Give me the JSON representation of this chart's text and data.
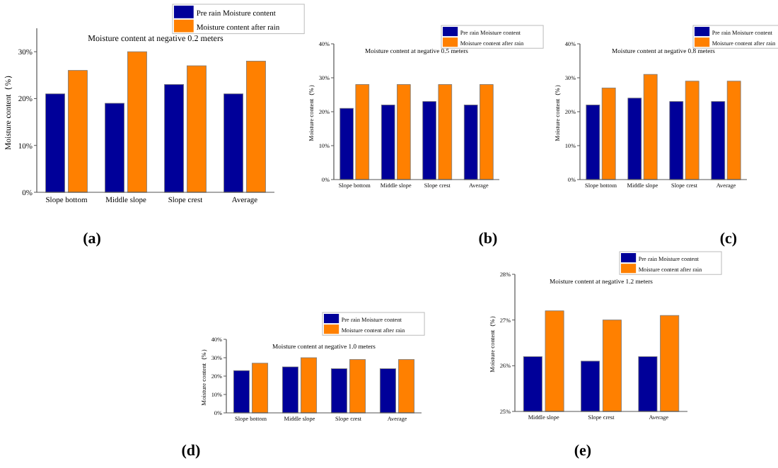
{
  "chart_data": [
    {
      "type": "bar",
      "title": "Moisture content at negative 0.2 meters",
      "ylabel": "Moisture content（%）",
      "categories": [
        "Slope bottom",
        "Middle slope",
        "Slope crest",
        "Average"
      ],
      "series": [
        {
          "name": "Pre rain Moisture content",
          "color": "#000099",
          "values": [
            21,
            19,
            23,
            21
          ]
        },
        {
          "name": "Moisture content after rain",
          "color": "#ff8000",
          "values": [
            26,
            30,
            27,
            28
          ]
        }
      ],
      "ylim": [
        0,
        35
      ],
      "yticks": [
        {
          "value": 0,
          "label": "0%"
        },
        {
          "value": 10,
          "label": "10%"
        },
        {
          "value": 20,
          "label": "20%"
        },
        {
          "value": 30,
          "label": "30%"
        }
      ],
      "legend": "top right",
      "annotations": [
        "(a)"
      ]
    },
    {
      "type": "bar",
      "title": "Moisture content at negative 0.5 meters",
      "ylabel": "Moisture content（%）",
      "categories": [
        "Slope bottom",
        "Middle slope",
        "Slope crest",
        "Average"
      ],
      "series": [
        {
          "name": "Pre rain Moisture content",
          "color": "#000099",
          "values": [
            21,
            22,
            23,
            22
          ]
        },
        {
          "name": "Moisture content after rain",
          "color": "#ff8000",
          "values": [
            28,
            28,
            28,
            28
          ]
        }
      ],
      "ylim": [
        0,
        40
      ],
      "yticks": [
        {
          "value": 0,
          "label": "0%"
        },
        {
          "value": 10,
          "label": "10%"
        },
        {
          "value": 20,
          "label": "20%"
        },
        {
          "value": 30,
          "label": "30%"
        },
        {
          "value": 40,
          "label": "40%"
        }
      ],
      "legend": "top right",
      "annotations": [
        "(b)"
      ]
    },
    {
      "type": "bar",
      "title": "Moisture content at negative 0.8 meters",
      "ylabel": "Moisture content（%）",
      "categories": [
        "Slope bottom",
        "Middle slope",
        "Slope crest",
        "Average"
      ],
      "series": [
        {
          "name": "Pre rain Moisture content",
          "color": "#000099",
          "values": [
            22,
            24,
            23,
            23
          ]
        },
        {
          "name": "Moisture content after rain",
          "color": "#ff8000",
          "values": [
            27,
            31,
            29,
            29
          ]
        }
      ],
      "ylim": [
        0,
        40
      ],
      "yticks": [
        {
          "value": 0,
          "label": "0%"
        },
        {
          "value": 10,
          "label": "10%"
        },
        {
          "value": 20,
          "label": "20%"
        },
        {
          "value": 30,
          "label": "30%"
        },
        {
          "value": 40,
          "label": "40%"
        }
      ],
      "legend": "top right",
      "annotations": [
        "(c)"
      ]
    },
    {
      "type": "bar",
      "title": "Moisture content at negative 1.0 meters",
      "ylabel": "Moisture content（%）",
      "categories": [
        "Slope bottom",
        "Middle slope",
        "Slope crest",
        "Average"
      ],
      "series": [
        {
          "name": "Pre rain Moisture content",
          "color": "#000099",
          "values": [
            23,
            25,
            24,
            24
          ]
        },
        {
          "name": "Moisture content after rain",
          "color": "#ff8000",
          "values": [
            27,
            30,
            29,
            29
          ]
        }
      ],
      "ylim": [
        0,
        40
      ],
      "yticks": [
        {
          "value": 0,
          "label": "0%"
        },
        {
          "value": 10,
          "label": "10%"
        },
        {
          "value": 20,
          "label": "20%"
        },
        {
          "value": 30,
          "label": "30%"
        },
        {
          "value": 40,
          "label": "40%"
        }
      ],
      "legend": "top right",
      "annotations": [
        "(d)"
      ]
    },
    {
      "type": "bar",
      "title": "Moisture content at negative 1.2 meters",
      "ylabel": "Moisture content（%）",
      "categories": [
        "Middle slope",
        "Slope crest",
        "Average"
      ],
      "series": [
        {
          "name": "Pre rain Moisture content",
          "color": "#000099",
          "values": [
            26.2,
            26.1,
            26.2
          ]
        },
        {
          "name": "Moisture content after rain",
          "color": "#ff8000",
          "values": [
            27.2,
            27.0,
            27.1
          ]
        }
      ],
      "ylim": [
        25,
        28
      ],
      "yticks": [
        {
          "value": 25,
          "label": "25%"
        },
        {
          "value": 26,
          "label": "26%"
        },
        {
          "value": 27,
          "label": "27%"
        },
        {
          "value": 28,
          "label": "28%"
        }
      ],
      "legend": "top right",
      "annotations": [
        "(e)"
      ]
    }
  ]
}
